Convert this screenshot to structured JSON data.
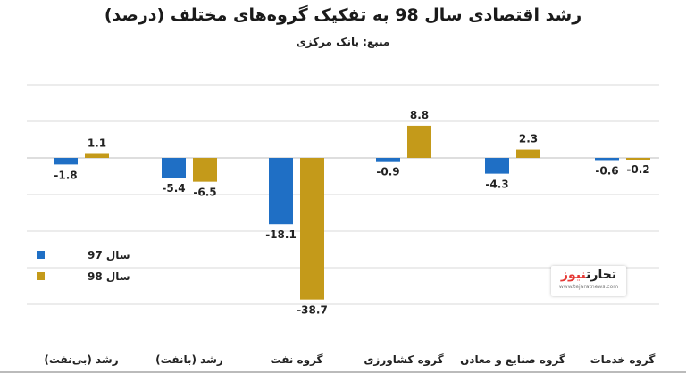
{
  "title": "رشد اقتصادی سال 98 به تفکیک گروه‌های مختلف (درصد)",
  "subtitle": "منبع: بانک مرکزی",
  "logo": {
    "part1": "تجارت",
    "part2": "نیوز",
    "site": "www.tejaratnews.com"
  },
  "colors": {
    "series_97": "#1f6fc5",
    "series_98": "#c49a1a",
    "grid": "#d9d9d9"
  },
  "chart_data": {
    "type": "bar",
    "categories": [
      "رشد (بی‌نفت)",
      "رشد (بانفت)",
      "گروه نفت",
      "گروه کشاورزی",
      "گروه صنایع و معادن",
      "گروه خدمات"
    ],
    "series": [
      {
        "name": "سال 97",
        "values": [
          -1.8,
          -5.4,
          -18.1,
          -0.9,
          -4.3,
          -0.6
        ]
      },
      {
        "name": "سال 98",
        "values": [
          1.1,
          -6.5,
          -38.7,
          8.8,
          2.3,
          -0.2
        ]
      }
    ],
    "title": "رشد اقتصادی سال 98 به تفکیک گروه‌های مختلف (درصد)",
    "xlabel": "",
    "ylabel": "",
    "ylim": [
      -50,
      20
    ],
    "grid": true,
    "legend_position": "left"
  }
}
